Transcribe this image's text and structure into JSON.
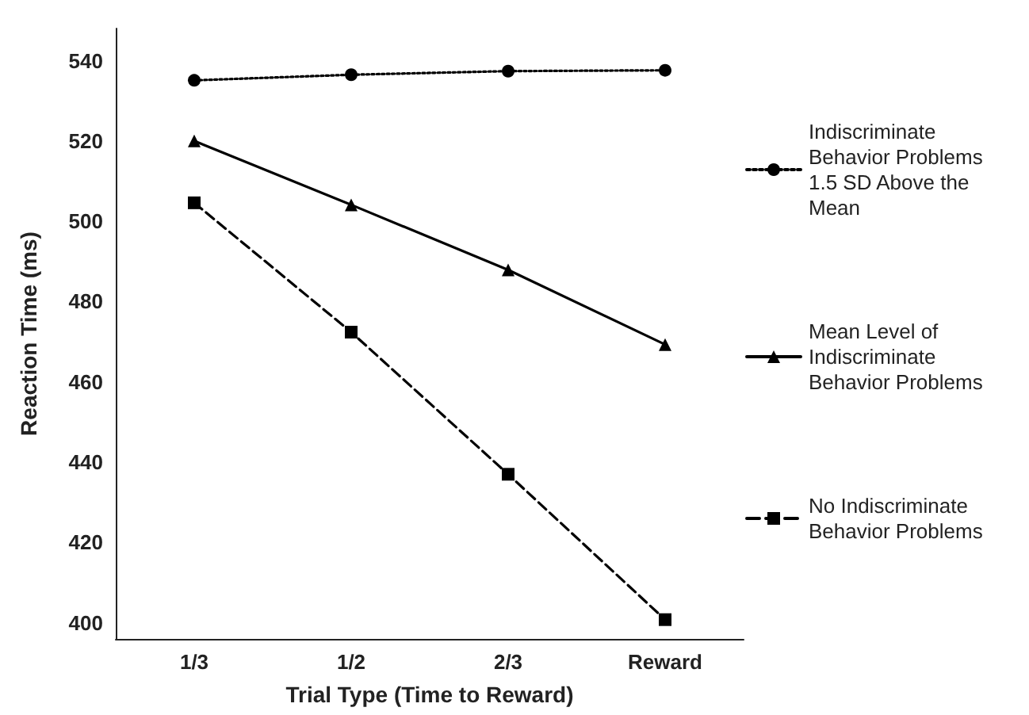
{
  "chart_data": {
    "type": "line",
    "xlabel": "Trial Type (Time to Reward)",
    "ylabel": "Reaction Time (ms)",
    "categories": [
      "1/3",
      "1/2",
      "2/3",
      "Reward"
    ],
    "ylim": [
      396,
      548
    ],
    "yticks": [
      400,
      420,
      440,
      460,
      480,
      500,
      520,
      540
    ],
    "grid": false,
    "legend": "right",
    "series": [
      {
        "name": "Indiscriminate Behavior Problems 1.5 SD Above the Mean",
        "color": "#000000",
        "marker": "circle",
        "line_style": "dotted",
        "values": [
          535.1,
          536.5,
          537.4,
          537.6
        ]
      },
      {
        "name": "Mean Level of Indiscriminate Behavior Problems",
        "color": "#000000",
        "marker": "triangle",
        "line_style": "solid",
        "values": [
          520,
          504.1,
          487.9,
          469.3
        ]
      },
      {
        "name": "No Indiscriminate Behavior Problems",
        "color": "#000000",
        "marker": "square",
        "line_style": "dashed",
        "values": [
          504.6,
          472.4,
          437,
          400.8
        ]
      }
    ]
  }
}
